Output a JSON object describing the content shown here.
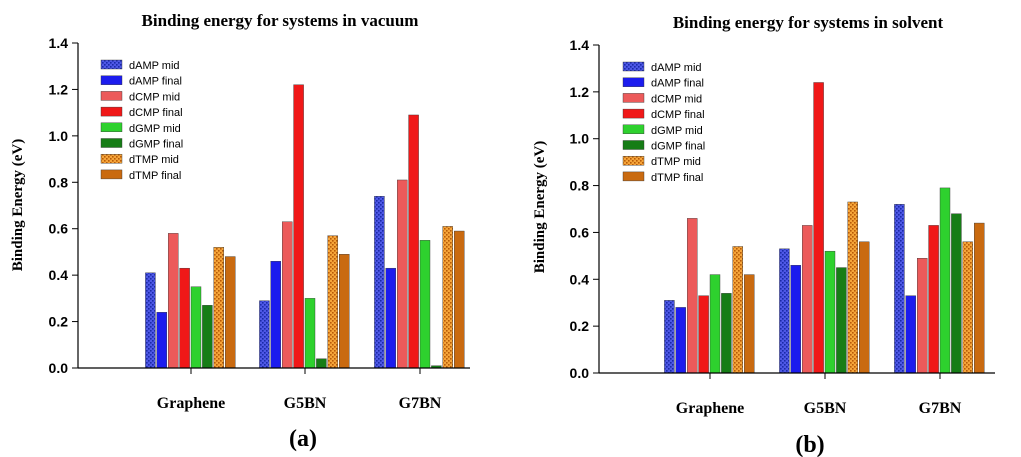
{
  "colors": {
    "dAMP mid": "#4e58e6",
    "dAMP final": "#1c1cee",
    "dCMP mid": "#ec5a5a",
    "dCMP final": "#f01818",
    "dGMP mid": "#2ed12e",
    "dGMP final": "#167d16",
    "dTMP mid": "#f09a2c",
    "dTMP final": "#c96a10"
  },
  "patterned_series": [
    "dAMP mid",
    "dTMP mid"
  ],
  "chart_data": [
    {
      "type": "bar",
      "title": "Binding energy for systems in vacuum",
      "ylabel": "Binding Energy (eV)",
      "xlabel": "",
      "caption": "(a)",
      "categories": [
        "Graphene",
        "G5BN",
        "G7BN"
      ],
      "ylim": [
        0,
        1.4
      ],
      "yticks": [
        "0.0",
        "0.2",
        "0.4",
        "0.6",
        "0.8",
        "1.0",
        "1.2",
        "1.4"
      ],
      "legend_position": "top-left",
      "grid": false,
      "series": [
        {
          "name": "dAMP mid",
          "values": [
            0.41,
            0.29,
            0.74
          ]
        },
        {
          "name": "dAMP final",
          "values": [
            0.24,
            0.46,
            0.43
          ]
        },
        {
          "name": "dCMP mid",
          "values": [
            0.58,
            0.63,
            0.81
          ]
        },
        {
          "name": "dCMP final",
          "values": [
            0.43,
            1.22,
            1.09
          ]
        },
        {
          "name": "dGMP mid",
          "values": [
            0.35,
            0.3,
            0.55
          ]
        },
        {
          "name": "dGMP final",
          "values": [
            0.27,
            0.04,
            0.01
          ]
        },
        {
          "name": "dTMP mid",
          "values": [
            0.52,
            0.57,
            0.61
          ]
        },
        {
          "name": "dTMP final",
          "values": [
            0.48,
            0.49,
            0.59
          ]
        }
      ]
    },
    {
      "type": "bar",
      "title": "Binding energy for systems in solvent",
      "ylabel": "Binding Energy (eV)",
      "xlabel": "",
      "caption": "(b)",
      "categories": [
        "Graphene",
        "G5BN",
        "G7BN"
      ],
      "ylim": [
        0,
        1.4
      ],
      "yticks": [
        "0.0",
        "0.2",
        "0.4",
        "0.6",
        "0.8",
        "1.0",
        "1.2",
        "1.4"
      ],
      "legend_position": "top-left",
      "grid": false,
      "series": [
        {
          "name": "dAMP mid",
          "values": [
            0.31,
            0.53,
            0.72
          ]
        },
        {
          "name": "dAMP final",
          "values": [
            0.28,
            0.46,
            0.33
          ]
        },
        {
          "name": "dCMP mid",
          "values": [
            0.66,
            0.63,
            0.49
          ]
        },
        {
          "name": "dCMP final",
          "values": [
            0.33,
            1.24,
            0.63
          ]
        },
        {
          "name": "dGMP mid",
          "values": [
            0.42,
            0.52,
            0.79
          ]
        },
        {
          "name": "dGMP final",
          "values": [
            0.34,
            0.45,
            0.68
          ]
        },
        {
          "name": "dTMP mid",
          "values": [
            0.54,
            0.73,
            0.56
          ]
        },
        {
          "name": "dTMP final",
          "values": [
            0.42,
            0.56,
            0.64
          ]
        }
      ]
    }
  ]
}
